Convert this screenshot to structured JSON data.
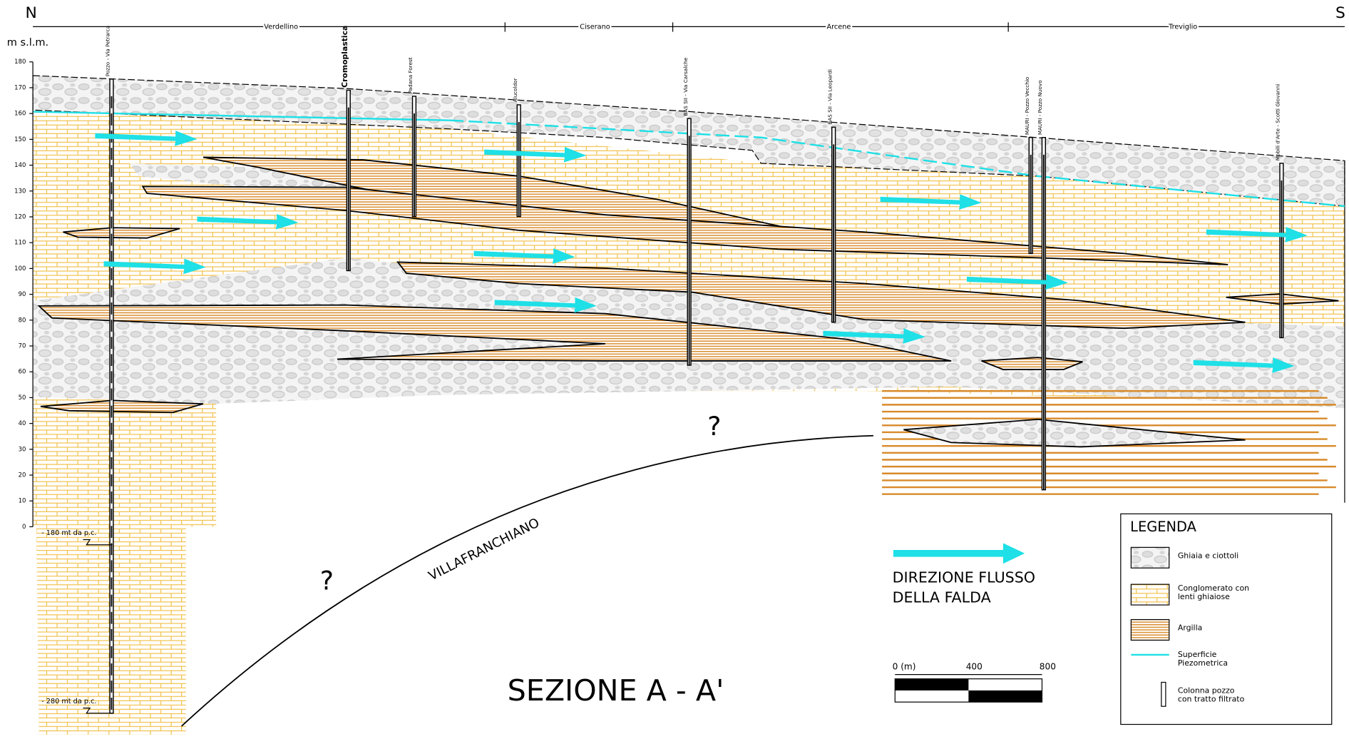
{
  "header": {
    "north": "N",
    "south": "S",
    "places": [
      "Verdellino",
      "Ciserano",
      "Arcene",
      "Treviglio"
    ]
  },
  "axis": {
    "label": "m s.l.m.",
    "ticks": [
      0,
      10,
      20,
      30,
      40,
      50,
      60,
      70,
      80,
      90,
      100,
      110,
      120,
      130,
      140,
      150,
      160,
      170,
      180
    ]
  },
  "wells": [
    {
      "label": "Pozzo - Via Petrarca"
    },
    {
      "label": "Cromoplastica"
    },
    {
      "label": "Padana Forest"
    },
    {
      "label": "Alucoldor"
    },
    {
      "label": "BAS SII - Via Carsalche"
    },
    {
      "label": "BAS SII - Via Leopardi"
    },
    {
      "label": "MAURI - Pozzo Vecchio"
    },
    {
      "label": "MAURI - Pozzo Nuovo"
    },
    {
      "label": "Mobili d'Arte - Scotti Giovanni"
    }
  ],
  "depth_notes": [
    "- 180 mt da p.c.",
    "- 280 mt da p.c."
  ],
  "annotations": {
    "unknown": [
      "?",
      "?"
    ],
    "formation": "VILLAFRANCHIANO"
  },
  "flow": {
    "label_lines": [
      "DIREZIONE FLUSSO",
      "DELLA FALDA"
    ]
  },
  "title": "SEZIONE A - A'",
  "scale": {
    "labels": [
      "0 (m)",
      "400",
      "800"
    ]
  },
  "legend": {
    "title": "LEGENDA",
    "items": [
      {
        "label_lines": [
          "Ghiaia e ciottoli"
        ]
      },
      {
        "label_lines": [
          "Conglomerato con",
          "lenti ghiaiose"
        ]
      },
      {
        "label_lines": [
          "Argilla"
        ]
      },
      {
        "label_lines": [
          "Superficie",
          "Piezometrica"
        ]
      },
      {
        "label_lines": [
          "Colonna pozzo",
          "con tratto filtrato"
        ]
      }
    ]
  }
}
